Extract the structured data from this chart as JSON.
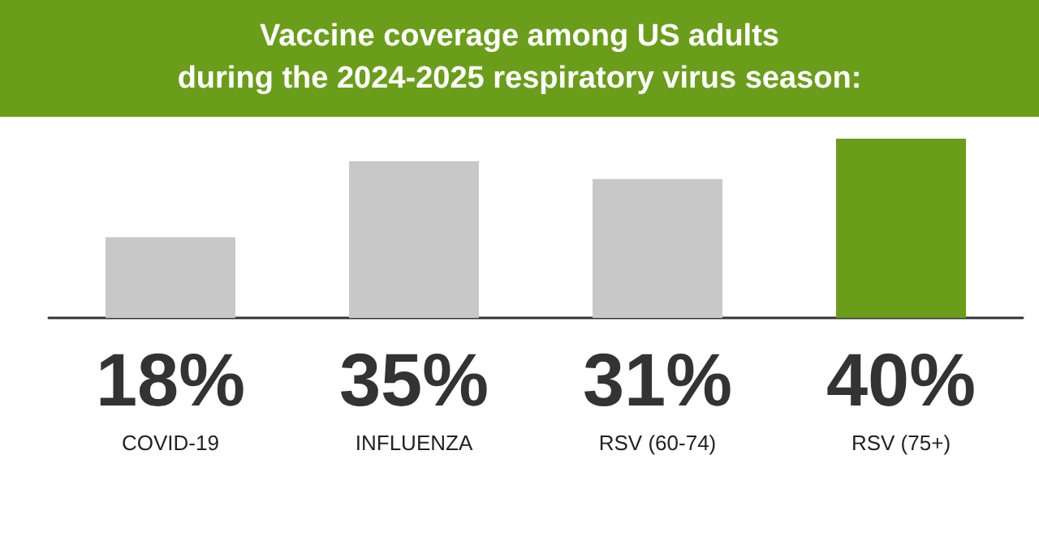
{
  "chart_data": {
    "type": "bar",
    "title": "Vaccine coverage among US adults\nduring the 2024-2025 respiratory virus season:",
    "categories": [
      "COVID-19",
      "INFLUENZA",
      "RSV (60-74)",
      "RSV (75+)"
    ],
    "values": [
      18,
      35,
      31,
      40
    ],
    "colors": [
      "#c8c8c8",
      "#c8c8c8",
      "#c8c8c8",
      "#6a9e1a"
    ],
    "value_labels": [
      "18%",
      "35%",
      "31%",
      "40%"
    ]
  }
}
